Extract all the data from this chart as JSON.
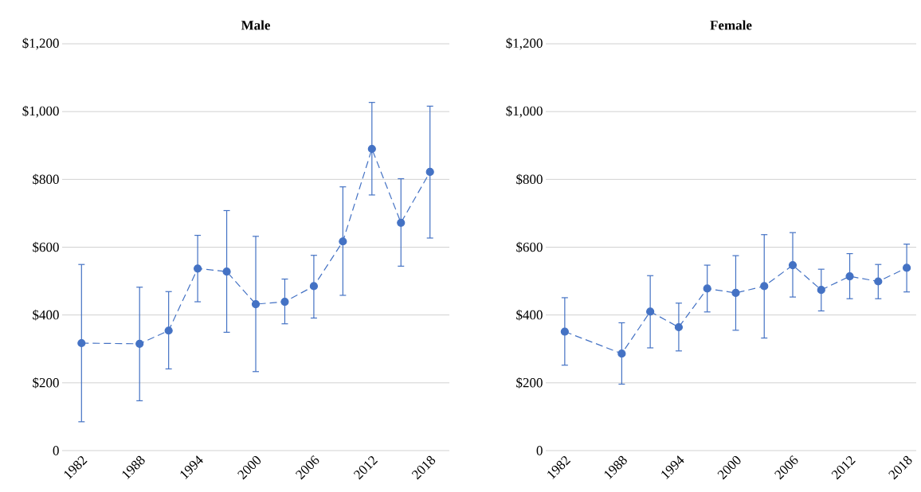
{
  "chart_data": [
    {
      "type": "line",
      "title": "Male",
      "x": [
        1982,
        1988,
        1991,
        1994,
        1997,
        2000,
        2003,
        2006,
        2009,
        2012,
        2015,
        2018
      ],
      "series": [
        {
          "color": "#4472c4",
          "values": [
            317,
            315,
            354,
            537,
            528,
            432,
            439,
            485,
            617,
            890,
            672,
            822
          ],
          "errors": [
            [
              85,
              549
            ],
            [
              147,
              482
            ],
            [
              241,
              469
            ],
            [
              439,
              635
            ],
            [
              349,
              708
            ],
            [
              233,
              632
            ],
            [
              374,
              506
            ],
            [
              391,
              576
            ],
            [
              458,
              778
            ],
            [
              754,
              1027
            ],
            [
              544,
              802
            ],
            [
              627,
              1016
            ]
          ]
        }
      ],
      "xlim": [
        1980,
        2020
      ],
      "xticks": [
        1982,
        1988,
        1994,
        2000,
        2006,
        2012,
        2018
      ],
      "ylim": [
        0,
        1200
      ],
      "yticks": [
        0,
        {
          "value": 200,
          "label": "$200"
        },
        {
          "value": 400,
          "label": "$400"
        },
        {
          "value": 600,
          "label": "$600"
        },
        {
          "value": 800,
          "label": "$800"
        },
        {
          "value": 1000,
          "label": "$1,000"
        },
        {
          "value": 1200,
          "label": "$1,200"
        }
      ],
      "grid": "y",
      "marker": "circle",
      "line_style": "dashed"
    },
    {
      "type": "line",
      "title": "Female",
      "x": [
        1982,
        1988,
        1991,
        1994,
        1997,
        2000,
        2003,
        2006,
        2009,
        2012,
        2015,
        2018
      ],
      "series": [
        {
          "color": "#4472c4",
          "values": [
            351,
            286,
            410,
            364,
            478,
            465,
            485,
            547,
            474,
            514,
            499,
            539
          ],
          "errors": [
            [
              252,
              451
            ],
            [
              196,
              377
            ],
            [
              303,
              516
            ],
            [
              294,
              435
            ],
            [
              409,
              547
            ],
            [
              355,
              575
            ],
            [
              332,
              637
            ],
            [
              453,
              643
            ],
            [
              412,
              535
            ],
            [
              448,
              581
            ],
            [
              448,
              549
            ],
            [
              468,
              609
            ]
          ]
        }
      ],
      "xlim": [
        1980,
        2019
      ],
      "xticks": [
        1982,
        1988,
        1994,
        2000,
        2006,
        2012,
        2018
      ],
      "ylim": [
        0,
        1200
      ],
      "yticks": [
        0,
        {
          "value": 200,
          "label": "$200"
        },
        {
          "value": 400,
          "label": "$400"
        },
        {
          "value": 600,
          "label": "$600"
        },
        {
          "value": 800,
          "label": "$800"
        },
        {
          "value": 1000,
          "label": "$1,000"
        },
        {
          "value": 1200,
          "label": "$1,200"
        }
      ],
      "grid": "y",
      "marker": "circle",
      "line_style": "dashed"
    }
  ]
}
